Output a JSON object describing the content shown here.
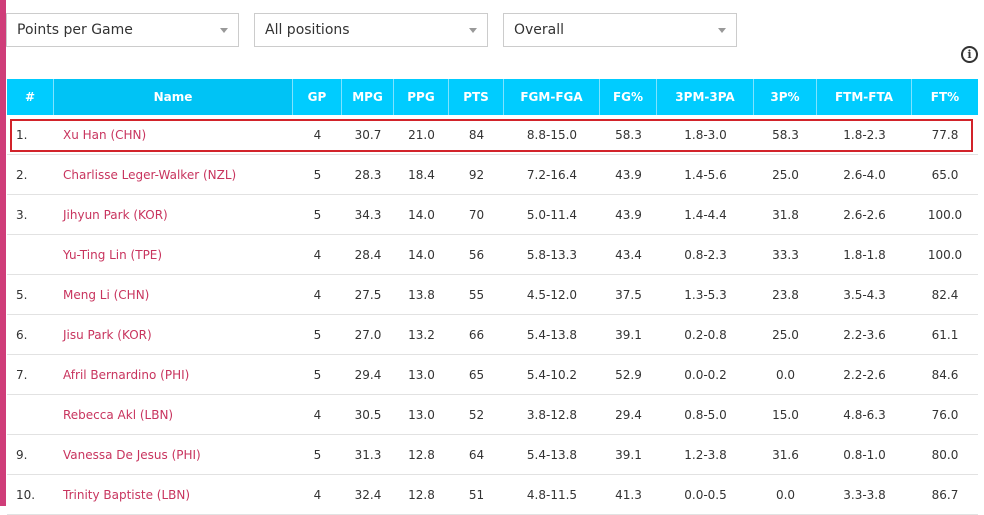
{
  "filters": {
    "stat": "Points per Game",
    "position": "All positions",
    "scope": "Overall"
  },
  "table": {
    "headers": [
      "#",
      "Name",
      "GP",
      "MPG",
      "PPG",
      "PTS",
      "FGM-FGA",
      "FG%",
      "3PM-3PA",
      "3P%",
      "FTM-FTA",
      "FT%"
    ],
    "rows": [
      [
        "1.",
        "Xu Han (CHN)",
        "4",
        "30.7",
        "21.0",
        "84",
        "8.8-15.0",
        "58.3",
        "1.8-3.0",
        "58.3",
        "1.8-2.3",
        "77.8"
      ],
      [
        "2.",
        "Charlisse Leger-Walker (NZL)",
        "5",
        "28.3",
        "18.4",
        "92",
        "7.2-16.4",
        "43.9",
        "1.4-5.6",
        "25.0",
        "2.6-4.0",
        "65.0"
      ],
      [
        "3.",
        "Jihyun Park (KOR)",
        "5",
        "34.3",
        "14.0",
        "70",
        "5.0-11.4",
        "43.9",
        "1.4-4.4",
        "31.8",
        "2.6-2.6",
        "100.0"
      ],
      [
        "",
        "Yu-Ting Lin (TPE)",
        "4",
        "28.4",
        "14.0",
        "56",
        "5.8-13.3",
        "43.4",
        "0.8-2.3",
        "33.3",
        "1.8-1.8",
        "100.0"
      ],
      [
        "5.",
        "Meng Li (CHN)",
        "4",
        "27.5",
        "13.8",
        "55",
        "4.5-12.0",
        "37.5",
        "1.3-5.3",
        "23.8",
        "3.5-4.3",
        "82.4"
      ],
      [
        "6.",
        "Jisu Park (KOR)",
        "5",
        "27.0",
        "13.2",
        "66",
        "5.4-13.8",
        "39.1",
        "0.2-0.8",
        "25.0",
        "2.2-3.6",
        "61.1"
      ],
      [
        "7.",
        "Afril Bernardino (PHI)",
        "5",
        "29.4",
        "13.0",
        "65",
        "5.4-10.2",
        "52.9",
        "0.0-0.2",
        "0.0",
        "2.2-2.6",
        "84.6"
      ],
      [
        "",
        "Rebecca Akl (LBN)",
        "4",
        "30.5",
        "13.0",
        "52",
        "3.8-12.8",
        "29.4",
        "0.8-5.0",
        "15.0",
        "4.8-6.3",
        "76.0"
      ],
      [
        "9.",
        "Vanessa De Jesus (PHI)",
        "5",
        "31.3",
        "12.8",
        "64",
        "5.4-13.8",
        "39.1",
        "1.2-3.8",
        "31.6",
        "0.8-1.0",
        "80.0"
      ],
      [
        "10.",
        "Trinity Baptiste (LBN)",
        "4",
        "32.4",
        "12.8",
        "51",
        "4.8-11.5",
        "41.3",
        "0.0-0.5",
        "0.0",
        "3.3-3.8",
        "86.7"
      ]
    ]
  },
  "icons": {
    "info": "i"
  },
  "colors": {
    "header_bg": "#00ccff",
    "name_link": "#c8345e",
    "highlight_border": "#d2232a",
    "accent": "#cf3d79"
  }
}
